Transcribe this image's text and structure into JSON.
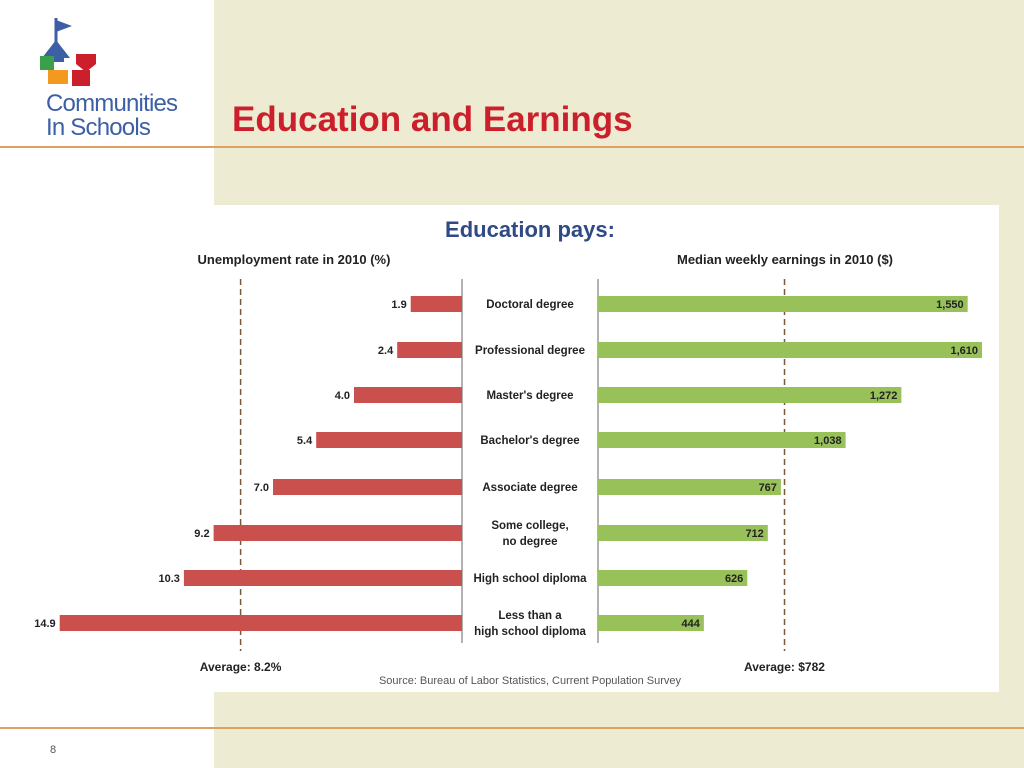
{
  "header": {
    "logo_line1": "Communities",
    "logo_line2": "In Schools",
    "title": "Education and Earnings"
  },
  "footer": {
    "page_number": "8"
  },
  "colors": {
    "title_red": "#cc1f2c",
    "bar_red": "#c9504d",
    "bar_green": "#99c15a",
    "infographic_title": "#2f4a85",
    "rule": "#e0a060"
  },
  "chart_data": {
    "type": "bar",
    "title": "Education pays:",
    "source": "Source: Bureau of Labor Statistics, Current Population Survey",
    "categories": [
      [
        "Doctoral degree"
      ],
      [
        "Professional degree"
      ],
      [
        "Master's degree"
      ],
      [
        "Bachelor's degree"
      ],
      [
        "Associate degree"
      ],
      [
        "Some college,",
        "no degree"
      ],
      [
        "High school diploma"
      ],
      [
        "Less than a",
        "high school diploma"
      ]
    ],
    "series": [
      {
        "name": "Unemployment rate in 2010 (%)",
        "values": [
          1.9,
          2.4,
          4.0,
          5.4,
          7.0,
          9.2,
          10.3,
          14.9
        ],
        "labels": [
          "1.9",
          "2.4",
          "4.0",
          "5.4",
          "7.0",
          "9.2",
          "10.3",
          "14.9"
        ],
        "average": 8.2,
        "average_label": "Average: 8.2%",
        "color": "#c9504d"
      },
      {
        "name": "Median weekly earnings in 2010 ($)",
        "values": [
          1550,
          1610,
          1272,
          1038,
          767,
          712,
          626,
          444
        ],
        "labels": [
          "1,550",
          "1,610",
          "1,272",
          "1,038",
          "767",
          "712",
          "626",
          "444"
        ],
        "average": 782,
        "average_label": "Average: $782",
        "color": "#99c15a"
      }
    ]
  }
}
